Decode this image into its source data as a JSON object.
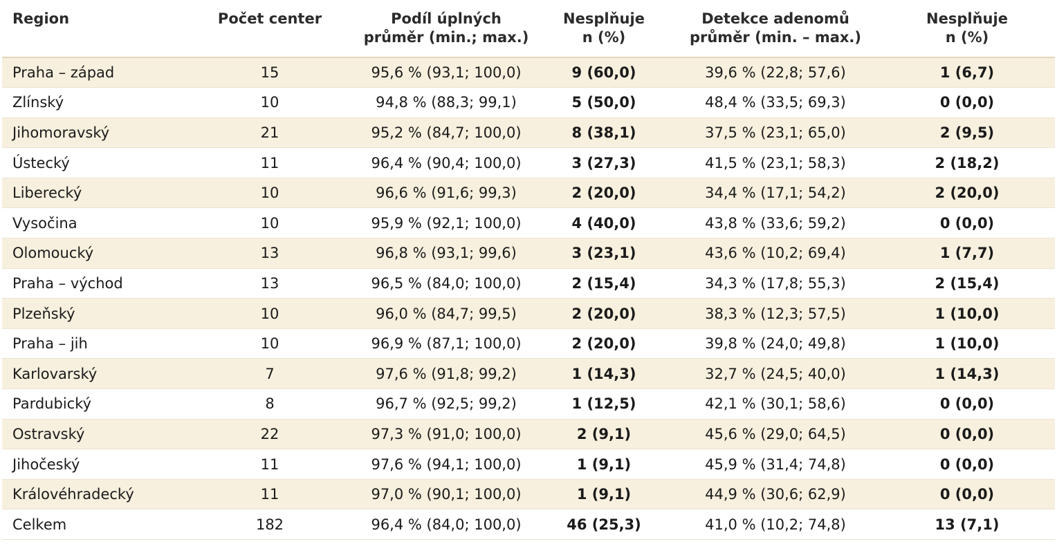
{
  "header": {
    "region": "Region",
    "count": "Počet center",
    "share_line1": "Podíl úplných",
    "share_line2": "průměr (min.; max.)",
    "nok1_line1": "Nesplňuje",
    "nok1_line2": "n (%)",
    "adr_line1": "Detekce adenomů",
    "adr_line2": "průměr (min. – max.)",
    "nok2_line1": "Nesplňuje",
    "nok2_line2": "n (%)"
  },
  "rows": [
    {
      "region": "Praha – západ",
      "count": "15",
      "share": "95,6 % (93,1; 100,0)",
      "nok1": "9 (60,0)",
      "adr": "39,6 % (22,8; 57,6)",
      "nok2": "1 (6,7)"
    },
    {
      "region": "Zlínský",
      "count": "10",
      "share": "94,8 % (88,3; 99,1)",
      "nok1": "5 (50,0)",
      "adr": "48,4 % (33,5; 69,3)",
      "nok2": "0 (0,0)"
    },
    {
      "region": "Jihomoravský",
      "count": "21",
      "share": "95,2 % (84,7; 100,0)",
      "nok1": "8 (38,1)",
      "adr": "37,5 % (23,1; 65,0)",
      "nok2": "2 (9,5)"
    },
    {
      "region": "Ústecký",
      "count": "11",
      "share": "96,4 % (90,4; 100,0)",
      "nok1": "3 (27,3)",
      "adr": "41,5 % (23,1; 58,3)",
      "nok2": "2 (18,2)"
    },
    {
      "region": "Liberecký",
      "count": "10",
      "share": "96,6 % (91,6; 99,3)",
      "nok1": "2 (20,0)",
      "adr": "34,4 % (17,1; 54,2)",
      "nok2": "2 (20,0)"
    },
    {
      "region": "Vysočina",
      "count": "10",
      "share": "95,9 % (92,1; 100,0)",
      "nok1": "4 (40,0)",
      "adr": "43,8 % (33,6; 59,2)",
      "nok2": "0 (0,0)"
    },
    {
      "region": "Olomoucký",
      "count": "13",
      "share": "96,8 % (93,1; 99,6)",
      "nok1": "3 (23,1)",
      "adr": "43,6 % (10,2; 69,4)",
      "nok2": "1 (7,7)"
    },
    {
      "region": "Praha – východ",
      "count": "13",
      "share": "96,5 % (84,0; 100,0)",
      "nok1": "2 (15,4)",
      "adr": "34,3 % (17,8; 55,3)",
      "nok2": "2 (15,4)"
    },
    {
      "region": "Plzeňský",
      "count": "10",
      "share": "96,0 % (84,7; 99,5)",
      "nok1": "2 (20,0)",
      "adr": "38,3 % (12,3; 57,5)",
      "nok2": "1 (10,0)"
    },
    {
      "region": "Praha – jih",
      "count": "10",
      "share": "96,9 % (87,1; 100,0)",
      "nok1": "2 (20,0)",
      "adr": "39,8 % (24,0; 49,8)",
      "nok2": "1 (10,0)"
    },
    {
      "region": "Karlovarský",
      "count": "7",
      "share": "97,6 % (91,8; 99,2)",
      "nok1": "1 (14,3)",
      "adr": "32,7 % (24,5; 40,0)",
      "nok2": "1 (14,3)"
    },
    {
      "region": "Pardubický",
      "count": "8",
      "share": "96,7 % (92,5; 99,2)",
      "nok1": "1 (12,5)",
      "adr": "42,1 % (30,1; 58,6)",
      "nok2": "0 (0,0)"
    },
    {
      "region": "Ostravský",
      "count": "22",
      "share": "97,3 % (91,0; 100,0)",
      "nok1": "2 (9,1)",
      "adr": "45,6 % (29,0; 64,5)",
      "nok2": "0 (0,0)"
    },
    {
      "region": "Jihočeský",
      "count": "11",
      "share": "97,6 % (94,1; 100,0)",
      "nok1": "1 (9,1)",
      "adr": "45,9 % (31,4; 74,8)",
      "nok2": "0 (0,0)"
    },
    {
      "region": "Královéhradecký",
      "count": "11",
      "share": "97,0 % (90,1; 100,0)",
      "nok1": "1 (9,1)",
      "adr": "44,9 % (30,6; 62,9)",
      "nok2": "0 (0,0)"
    },
    {
      "region": "Celkem",
      "count": "182",
      "share": "96,4 % (84,0; 100,0)",
      "nok1": "46 (25,3)",
      "adr": "41,0 % (10,2; 74,8)",
      "nok2": "13 (7,1)"
    }
  ]
}
